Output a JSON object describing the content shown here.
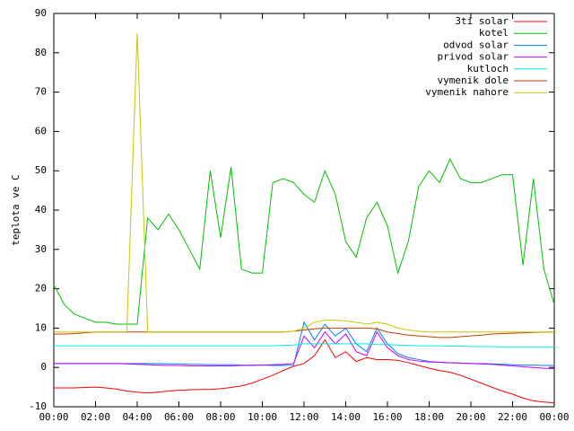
{
  "chart_data": {
    "type": "line",
    "ylabel": "teplota ve C",
    "x": [
      0,
      0.5,
      1,
      1.5,
      2,
      2.5,
      3,
      3.5,
      4,
      4.5,
      5,
      5.5,
      6,
      6.5,
      7,
      7.5,
      8,
      8.5,
      9,
      9.5,
      10,
      10.5,
      11,
      11.5,
      12,
      12.5,
      13,
      13.5,
      14,
      14.5,
      15,
      15.5,
      16,
      16.5,
      17,
      17.5,
      18,
      18.5,
      19,
      19.5,
      20,
      20.5,
      21,
      21.5,
      22,
      22.5,
      23,
      23.5,
      24
    ],
    "xlim": [
      0,
      24
    ],
    "xticks": [
      {
        "value": 0,
        "label": "00:00"
      },
      {
        "value": 2,
        "label": "02:00"
      },
      {
        "value": 4,
        "label": "04:00"
      },
      {
        "value": 6,
        "label": "06:00"
      },
      {
        "value": 8,
        "label": "08:00"
      },
      {
        "value": 10,
        "label": "10:00"
      },
      {
        "value": 12,
        "label": "12:00"
      },
      {
        "value": 14,
        "label": "14:00"
      },
      {
        "value": 16,
        "label": "16:00"
      },
      {
        "value": 18,
        "label": "18:00"
      },
      {
        "value": 20,
        "label": "20:00"
      },
      {
        "value": 22,
        "label": "22:00"
      },
      {
        "value": 24,
        "label": "00:00"
      }
    ],
    "ylim": [
      -10,
      90
    ],
    "yticks": [
      -10,
      0,
      10,
      20,
      30,
      40,
      50,
      60,
      70,
      80,
      90
    ],
    "legend": "top-right",
    "series": [
      {
        "name": "3ti solar",
        "color": "#ff0000",
        "values": [
          -5.2,
          -5.2,
          -5.2,
          -5.1,
          -5,
          -5.2,
          -5.5,
          -6,
          -6.3,
          -6.5,
          -6.3,
          -6,
          -5.8,
          -5.7,
          -5.6,
          -5.6,
          -5.4,
          -5.1,
          -4.7,
          -4,
          -3,
          -2,
          -0.8,
          0.3,
          1,
          3,
          7,
          2.5,
          4,
          1.5,
          2.5,
          2,
          2,
          1.8,
          1.2,
          0.5,
          -0.2,
          -0.8,
          -1.2,
          -2,
          -3,
          -4,
          -5,
          -6,
          -6.8,
          -7.8,
          -8.5,
          -8.8,
          -9
        ]
      },
      {
        "name": "kotel",
        "color": "#00c000",
        "values": [
          21,
          16,
          13.5,
          12.5,
          11.5,
          11.5,
          11,
          11,
          11,
          38,
          35,
          39,
          35,
          30,
          25,
          50,
          33,
          51,
          25,
          24,
          24,
          47,
          48,
          47,
          44,
          42,
          50,
          44,
          32,
          28,
          38,
          42,
          36,
          24,
          32,
          46,
          50,
          47,
          53,
          48,
          47,
          47,
          48,
          49,
          49,
          26,
          48,
          25,
          16
        ]
      },
      {
        "name": "odvod solar",
        "color": "#0080ff",
        "values": [
          1,
          1,
          1,
          1,
          1,
          1,
          1,
          1,
          1,
          1,
          1,
          0.9,
          0.9,
          0.8,
          0.8,
          0.7,
          0.7,
          0.7,
          0.6,
          0.6,
          0.6,
          0.5,
          0.5,
          0.6,
          11.5,
          7,
          11,
          8,
          10,
          6,
          4,
          10,
          6,
          3.5,
          2.5,
          2,
          1.5,
          1.3,
          1.2,
          1.1,
          1,
          1,
          0.9,
          0.8,
          0.7,
          0.6,
          0.6,
          0.5,
          0.5
        ]
      },
      {
        "name": "privod solar",
        "color": "#c000ff",
        "values": [
          1,
          1,
          1,
          1,
          1,
          1,
          1,
          0.9,
          0.8,
          0.7,
          0.6,
          0.5,
          0.5,
          0.4,
          0.4,
          0.4,
          0.4,
          0.4,
          0.5,
          0.5,
          0.6,
          0.7,
          0.8,
          1,
          8,
          5,
          9,
          6,
          8.5,
          4,
          3,
          9,
          5,
          3,
          2,
          1.6,
          1.4,
          1.3,
          1.2,
          1.1,
          1,
          0.9,
          0.8,
          0.6,
          0.4,
          0.2,
          0,
          -0.2,
          -0.3
        ]
      },
      {
        "name": "kutloch",
        "color": "#00eeee",
        "values": [
          5.5,
          5.5,
          5.5,
          5.5,
          5.5,
          5.5,
          5.5,
          5.5,
          5.5,
          5.5,
          5.5,
          5.5,
          5.5,
          5.5,
          5.5,
          5.5,
          5.5,
          5.5,
          5.5,
          5.5,
          5.5,
          5.5,
          5.6,
          5.7,
          6,
          6,
          6,
          6,
          6,
          6,
          6,
          5.8,
          5.8,
          5.7,
          5.6,
          5.5,
          5.5,
          5.5,
          5.4,
          5.4,
          5.3,
          5.3,
          5.3,
          5.2,
          5.2,
          5.2,
          5.2,
          5.2,
          5.2
        ]
      },
      {
        "name": "vymenik dole",
        "color": "#c04000",
        "values": [
          8.5,
          8.5,
          8.6,
          8.8,
          9,
          9,
          9,
          9,
          9,
          9,
          9,
          9,
          9,
          9,
          9,
          9,
          9,
          9,
          9,
          9,
          9,
          9,
          9,
          9.2,
          9.5,
          9.8,
          10,
          10,
          10,
          10,
          10,
          9.8,
          9,
          8.6,
          8.2,
          8,
          7.8,
          7.6,
          7.6,
          7.8,
          8,
          8.2,
          8.5,
          8.6,
          8.7,
          8.8,
          8.9,
          9,
          9
        ]
      },
      {
        "name": "vymenik nahore",
        "color": "#c8c800",
        "values": [
          9,
          9,
          9,
          9,
          9,
          9,
          9,
          9,
          85,
          9,
          9,
          9,
          9,
          9,
          9,
          9,
          9,
          9,
          9,
          9,
          9,
          9,
          9,
          9.2,
          10,
          11.5,
          12,
          12,
          11.8,
          11.5,
          11,
          11.5,
          11,
          10,
          9.5,
          9.2,
          9,
          9,
          9,
          9,
          9,
          9,
          9,
          9,
          9,
          9,
          9,
          9,
          9
        ]
      }
    ]
  }
}
